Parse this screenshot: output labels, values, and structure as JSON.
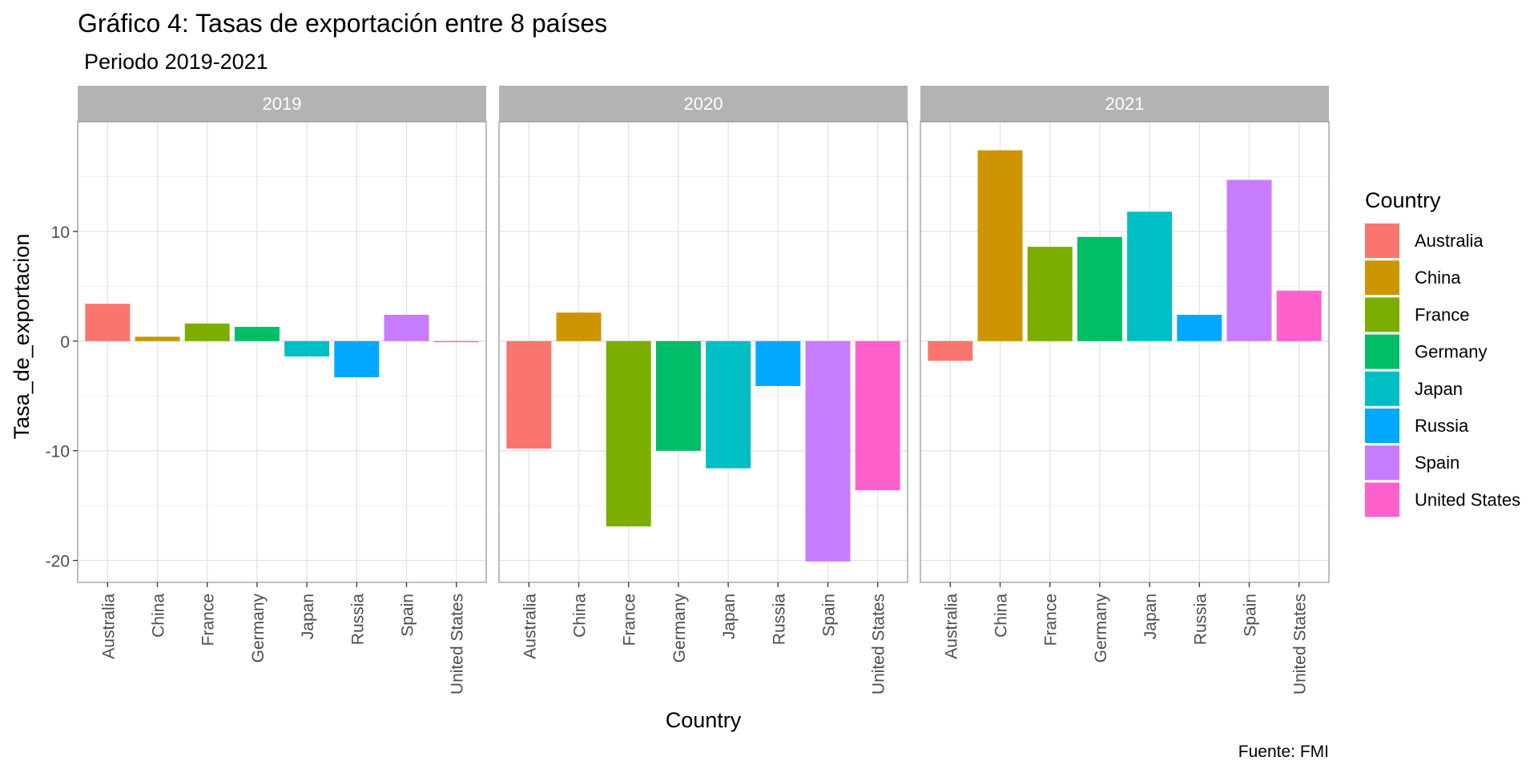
{
  "chart_data": {
    "type": "bar",
    "title": "Gráfico 4: Tasas de exportación entre 8 países",
    "subtitle": "Periodo 2019-2021",
    "xlabel": "Country",
    "ylabel": "Tasa_de_exportacion",
    "caption": "Fuente: FMI",
    "legend_title": "Country",
    "legend_position": "right",
    "categories": [
      "Australia",
      "China",
      "France",
      "Germany",
      "Japan",
      "Russia",
      "Spain",
      "United States"
    ],
    "colors": [
      "#F8766D",
      "#CD9600",
      "#7CAE00",
      "#00BE67",
      "#00BFC4",
      "#00A9FF",
      "#C77CFF",
      "#FF61CC"
    ],
    "ylim": [
      -22,
      20
    ],
    "yticks": [
      -20,
      -10,
      0,
      10
    ],
    "ytick_labels": [
      "-20",
      "-10",
      "0",
      "10"
    ],
    "facets": [
      {
        "label": "2019",
        "values": [
          3.4,
          0.4,
          1.6,
          1.3,
          -1.4,
          -3.3,
          2.4,
          -0.1
        ]
      },
      {
        "label": "2020",
        "values": [
          -9.8,
          2.6,
          -16.9,
          -10.0,
          -11.6,
          -4.1,
          -20.1,
          -13.6
        ]
      },
      {
        "label": "2021",
        "values": [
          -1.8,
          17.4,
          8.6,
          9.5,
          11.8,
          2.4,
          14.7,
          4.6
        ]
      }
    ]
  }
}
